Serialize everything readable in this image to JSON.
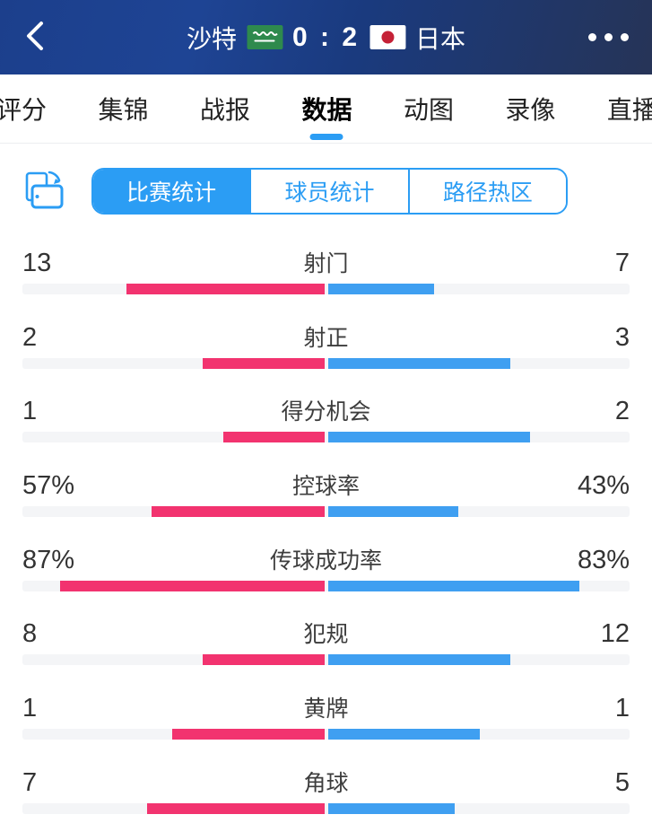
{
  "colors": {
    "accent": "#2b9df4",
    "home_bar": "#f2336f",
    "away_bar": "#3f9ff1",
    "track": "#f4f5f7",
    "header_left": "#1c3f8c",
    "header_right": "#263457"
  },
  "header": {
    "back_icon": "chevron-left",
    "home_team": "沙特",
    "score": "0 : 2",
    "away_team": "日本",
    "home_flag": "saudi-arabia-flag",
    "away_flag": "japan-flag",
    "more_icon": "ellipsis"
  },
  "tabs": [
    {
      "id": "rating",
      "label": "评分",
      "active": false
    },
    {
      "id": "highlights",
      "label": "集锦",
      "active": false
    },
    {
      "id": "report",
      "label": "战报",
      "active": false
    },
    {
      "id": "data",
      "label": "数据",
      "active": true
    },
    {
      "id": "gifs",
      "label": "动图",
      "active": false
    },
    {
      "id": "video",
      "label": "录像",
      "active": false
    },
    {
      "id": "live",
      "label": "直播",
      "active": false
    }
  ],
  "subtabs": {
    "rotate_icon": "rotate-screen",
    "segments": [
      {
        "id": "match-stats",
        "label": "比赛统计",
        "active": true
      },
      {
        "id": "player-stats",
        "label": "球员统计",
        "active": false
      },
      {
        "id": "heat-map",
        "label": "路径热区",
        "active": false
      }
    ]
  },
  "chart_data": {
    "type": "bar",
    "title": "比赛统计",
    "legend": {
      "home": "沙特",
      "away": "日本"
    },
    "layout": "mirrored-center-bars, home extends left (pink), away extends right (blue)",
    "rows": [
      {
        "id": "shots",
        "label": "射门",
        "home": 13,
        "away": 7,
        "home_display": "13",
        "away_display": "7",
        "mode": "share"
      },
      {
        "id": "shots-on-target",
        "label": "射正",
        "home": 2,
        "away": 3,
        "home_display": "2",
        "away_display": "3",
        "mode": "share"
      },
      {
        "id": "big-chances",
        "label": "得分机会",
        "home": 1,
        "away": 2,
        "home_display": "1",
        "away_display": "2",
        "mode": "share"
      },
      {
        "id": "possession",
        "label": "控球率",
        "home": 57,
        "away": 43,
        "home_display": "57%",
        "away_display": "43%",
        "mode": "percent"
      },
      {
        "id": "pass-accuracy",
        "label": "传球成功率",
        "home": 87,
        "away": 83,
        "home_display": "87%",
        "away_display": "83%",
        "mode": "percent"
      },
      {
        "id": "fouls",
        "label": "犯规",
        "home": 8,
        "away": 12,
        "home_display": "8",
        "away_display": "12",
        "mode": "share"
      },
      {
        "id": "yellow-cards",
        "label": "黄牌",
        "home": 1,
        "away": 1,
        "home_display": "1",
        "away_display": "1",
        "mode": "share"
      },
      {
        "id": "corners",
        "label": "角球",
        "home": 7,
        "away": 5,
        "home_display": "7",
        "away_display": "5",
        "mode": "share"
      }
    ]
  }
}
